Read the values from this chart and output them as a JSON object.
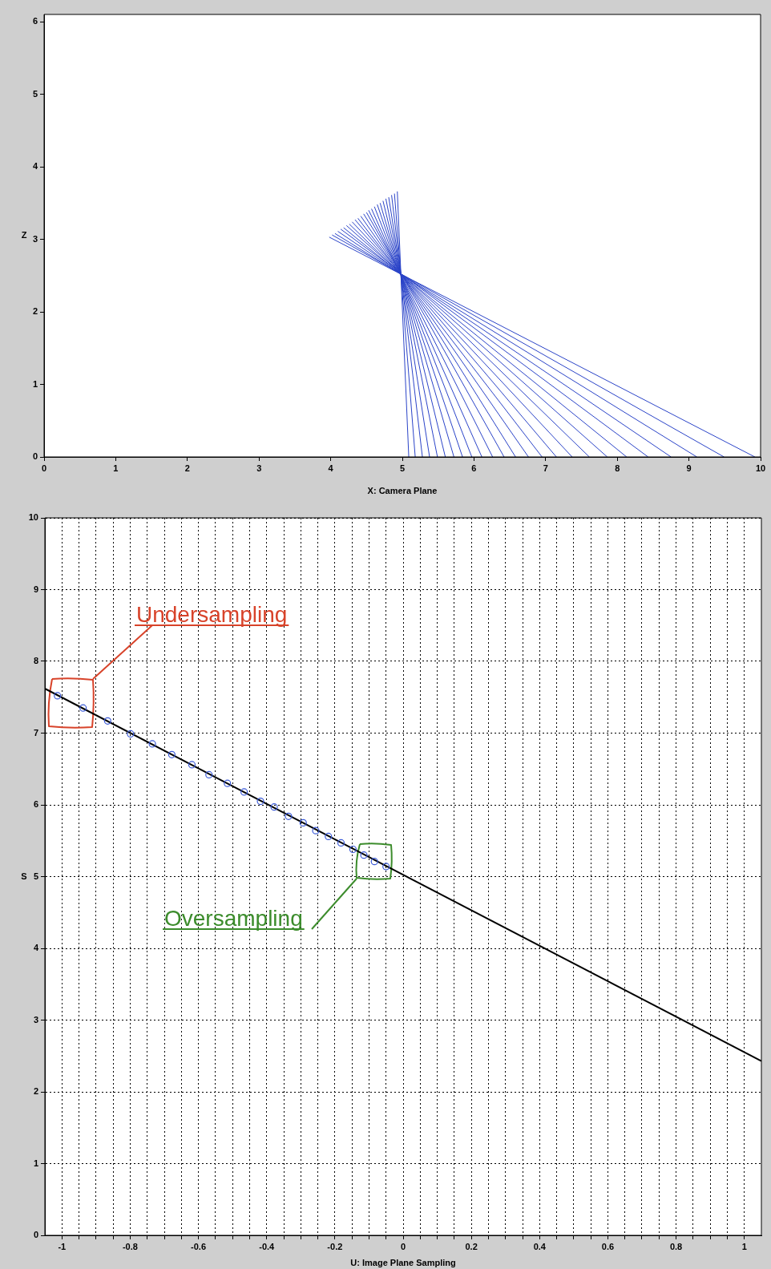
{
  "chart_data": [
    {
      "type": "line",
      "xlabel": "X: Camera Plane",
      "ylabel": "Z",
      "xlim": [
        0,
        10
      ],
      "ylim": [
        0,
        6.1
      ],
      "xticks": [
        0,
        1,
        2,
        3,
        4,
        5,
        6,
        7,
        8,
        9,
        10
      ],
      "yticks": [
        0,
        1,
        2,
        3,
        4,
        5,
        6
      ],
      "grid": false,
      "series": [
        {
          "color": "#2b44c8",
          "x": [
            3.98,
            9.92
          ],
          "values": [
            3.03,
            0
          ]
        },
        {
          "color": "#2b44c8",
          "x": [
            4.02,
            9.49
          ],
          "values": [
            3.06,
            0
          ]
        },
        {
          "color": "#2b44c8",
          "x": [
            4.06,
            9.11
          ],
          "values": [
            3.08,
            0
          ]
        },
        {
          "color": "#2b44c8",
          "x": [
            4.1,
            8.75
          ],
          "values": [
            3.11,
            0
          ]
        },
        {
          "color": "#2b44c8",
          "x": [
            4.14,
            8.43
          ],
          "values": [
            3.14,
            0
          ]
        },
        {
          "color": "#2b44c8",
          "x": [
            4.18,
            8.13
          ],
          "values": [
            3.16,
            0
          ]
        },
        {
          "color": "#2b44c8",
          "x": [
            4.22,
            7.86
          ],
          "values": [
            3.19,
            0
          ]
        },
        {
          "color": "#2b44c8",
          "x": [
            4.26,
            7.61
          ],
          "values": [
            3.21,
            0
          ]
        },
        {
          "color": "#2b44c8",
          "x": [
            4.3,
            7.37
          ],
          "values": [
            3.24,
            0
          ]
        },
        {
          "color": "#2b44c8",
          "x": [
            4.34,
            7.15
          ],
          "values": [
            3.27,
            0
          ]
        },
        {
          "color": "#2b44c8",
          "x": [
            4.38,
            6.95
          ],
          "values": [
            3.29,
            0
          ]
        },
        {
          "color": "#2b44c8",
          "x": [
            4.42,
            6.76
          ],
          "values": [
            3.32,
            0
          ]
        },
        {
          "color": "#2b44c8",
          "x": [
            4.46,
            6.58
          ],
          "values": [
            3.35,
            0
          ]
        },
        {
          "color": "#2b44c8",
          "x": [
            4.5,
            6.42
          ],
          "values": [
            3.37,
            0
          ]
        },
        {
          "color": "#2b44c8",
          "x": [
            4.53,
            6.26
          ],
          "values": [
            3.4,
            0
          ]
        },
        {
          "color": "#2b44c8",
          "x": [
            4.57,
            6.11
          ],
          "values": [
            3.42,
            0
          ]
        },
        {
          "color": "#2b44c8",
          "x": [
            4.61,
            5.97
          ],
          "values": [
            3.45,
            0
          ]
        },
        {
          "color": "#2b44c8",
          "x": [
            4.65,
            5.84
          ],
          "values": [
            3.48,
            0
          ]
        },
        {
          "color": "#2b44c8",
          "x": [
            4.69,
            5.72
          ],
          "values": [
            3.5,
            0
          ]
        },
        {
          "color": "#2b44c8",
          "x": [
            4.73,
            5.6
          ],
          "values": [
            3.53,
            0
          ]
        },
        {
          "color": "#2b44c8",
          "x": [
            4.77,
            5.49
          ],
          "values": [
            3.56,
            0
          ]
        },
        {
          "color": "#2b44c8",
          "x": [
            4.81,
            5.38
          ],
          "values": [
            3.58,
            0
          ]
        },
        {
          "color": "#2b44c8",
          "x": [
            4.85,
            5.28
          ],
          "values": [
            3.61,
            0
          ]
        },
        {
          "color": "#2b44c8",
          "x": [
            4.89,
            5.18
          ],
          "values": [
            3.63,
            0
          ]
        },
        {
          "color": "#2b44c8",
          "x": [
            4.93,
            5.09
          ],
          "values": [
            3.66,
            0
          ]
        }
      ]
    },
    {
      "type": "scatter",
      "xlabel": "U: Image Plane Sampling",
      "ylabel": "S",
      "xlim": [
        -1.05,
        1.05
      ],
      "ylim": [
        0,
        10
      ],
      "xticks": [
        {
          "value": -1,
          "label": "-1"
        },
        {
          "value": -0.95,
          "label": null
        },
        {
          "value": -0.9,
          "label": null
        },
        {
          "value": -0.85,
          "label": null
        },
        {
          "value": -0.8,
          "label": "-0.8"
        },
        {
          "value": -0.75,
          "label": null
        },
        {
          "value": -0.7,
          "label": null
        },
        {
          "value": -0.65,
          "label": null
        },
        {
          "value": -0.6,
          "label": "-0.6"
        },
        {
          "value": -0.55,
          "label": null
        },
        {
          "value": -0.5,
          "label": null
        },
        {
          "value": -0.45,
          "label": null
        },
        {
          "value": -0.4,
          "label": "-0.4"
        },
        {
          "value": -0.35,
          "label": null
        },
        {
          "value": -0.3,
          "label": null
        },
        {
          "value": -0.25,
          "label": null
        },
        {
          "value": -0.2,
          "label": "-0.2"
        },
        {
          "value": -0.15,
          "label": null
        },
        {
          "value": -0.1,
          "label": null
        },
        {
          "value": -0.05,
          "label": null
        },
        {
          "value": 0,
          "label": "0"
        },
        {
          "value": 0.05,
          "label": null
        },
        {
          "value": 0.1,
          "label": null
        },
        {
          "value": 0.15,
          "label": null
        },
        {
          "value": 0.2,
          "label": "0.2"
        },
        {
          "value": 0.25,
          "label": null
        },
        {
          "value": 0.3,
          "label": null
        },
        {
          "value": 0.35,
          "label": null
        },
        {
          "value": 0.4,
          "label": "0.4"
        },
        {
          "value": 0.45,
          "label": null
        },
        {
          "value": 0.5,
          "label": null
        },
        {
          "value": 0.55,
          "label": null
        },
        {
          "value": 0.6,
          "label": "0.6"
        },
        {
          "value": 0.65,
          "label": null
        },
        {
          "value": 0.7,
          "label": null
        },
        {
          "value": 0.75,
          "label": null
        },
        {
          "value": 0.8,
          "label": "0.8"
        },
        {
          "value": 0.85,
          "label": null
        },
        {
          "value": 0.9,
          "label": null
        },
        {
          "value": 0.95,
          "label": null
        },
        {
          "value": 1,
          "label": "1"
        }
      ],
      "yticks": [
        0,
        1,
        2,
        3,
        4,
        5,
        6,
        7,
        8,
        9,
        10
      ],
      "grid": true,
      "series": [
        {
          "type": "scatter",
          "marker": "circle",
          "color": "#3a5ad8",
          "x": [
            -1.013,
            -0.938,
            -0.866,
            -0.799,
            -0.735,
            -0.678,
            -0.619,
            -0.569,
            -0.515,
            -0.466,
            -0.418,
            -0.378,
            -0.336,
            -0.293,
            -0.256,
            -0.219,
            -0.182,
            -0.147,
            -0.115,
            -0.084,
            -0.05
          ],
          "values": [
            7.52,
            7.35,
            7.17,
            6.99,
            6.85,
            6.7,
            6.56,
            6.42,
            6.3,
            6.18,
            6.05,
            5.97,
            5.84,
            5.75,
            5.64,
            5.56,
            5.47,
            5.38,
            5.3,
            5.21,
            5.14
          ]
        },
        {
          "type": "line",
          "marker": "none",
          "color": "#000000",
          "x": [
            -1.05,
            1.05
          ],
          "values": [
            7.62,
            2.43
          ]
        }
      ],
      "annotations": [
        "Undersampling",
        "Oversampling"
      ]
    }
  ]
}
